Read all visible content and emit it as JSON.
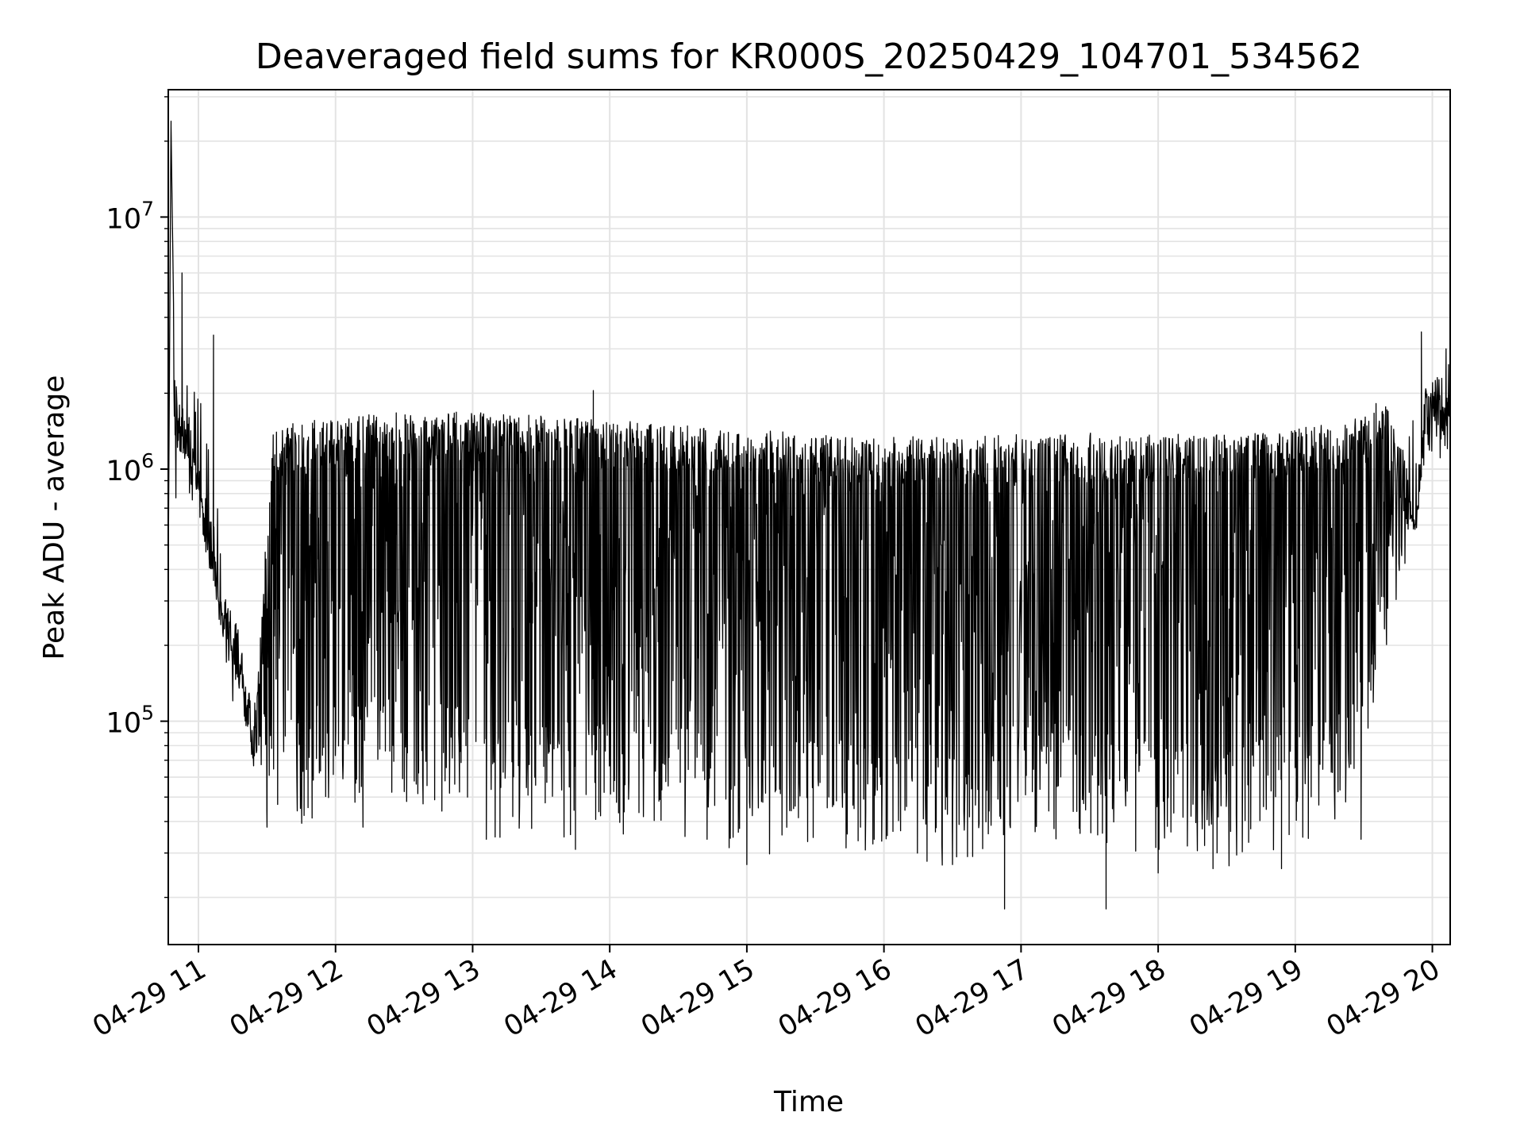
{
  "chart_data": {
    "type": "line",
    "title": "Deaveraged field sums for KR000S_20250429_104701_534562",
    "xlabel": "Time",
    "ylabel": "Peak ADU - average",
    "yscale": "log",
    "grid": true,
    "line_color": "#000000",
    "x_ticks": [
      "04-29 11",
      "04-29 12",
      "04-29 13",
      "04-29 14",
      "04-29 15",
      "04-29 16",
      "04-29 17",
      "04-29 18",
      "04-29 19",
      "04-29 20"
    ],
    "x_tick_hours": [
      11,
      12,
      13,
      14,
      15,
      16,
      17,
      18,
      19,
      20
    ],
    "xlim_hours": [
      10.78,
      20.13
    ],
    "y_ticks": [
      {
        "base": "10",
        "exp": "5",
        "value": 100000
      },
      {
        "base": "10",
        "exp": "6",
        "value": 1000000
      },
      {
        "base": "10",
        "exp": "7",
        "value": 10000000
      }
    ],
    "ylim": [
      13000,
      32000000
    ],
    "series": [
      {
        "anchors": [
          [
            10.78,
            400000
          ],
          [
            10.8,
            24000000
          ],
          [
            10.83,
            1500000
          ],
          [
            10.87,
            1400000
          ],
          [
            10.95,
            1200000
          ],
          [
            11.05,
            600000
          ],
          [
            11.15,
            300000
          ],
          [
            11.3,
            180000
          ],
          [
            11.4,
            80000
          ],
          [
            11.55,
            1200000
          ],
          [
            12.0,
            1300000
          ],
          [
            12.5,
            1350000
          ],
          [
            13.0,
            1350000
          ],
          [
            13.5,
            1300000
          ],
          [
            14.0,
            1250000
          ],
          [
            14.5,
            1200000
          ],
          [
            15.0,
            1150000
          ],
          [
            15.5,
            1100000
          ],
          [
            16.0,
            1080000
          ],
          [
            16.5,
            1070000
          ],
          [
            17.0,
            1100000
          ],
          [
            17.5,
            1120000
          ],
          [
            18.0,
            1100000
          ],
          [
            18.5,
            1100000
          ],
          [
            19.0,
            1150000
          ],
          [
            19.5,
            1300000
          ],
          [
            19.65,
            1600000
          ],
          [
            19.8,
            900000
          ],
          [
            19.88,
            550000
          ],
          [
            19.95,
            1700000
          ],
          [
            20.13,
            2000000
          ]
        ],
        "spikes": [
          [
            10.8,
            24000000
          ],
          [
            10.88,
            6000000
          ],
          [
            11.11,
            3400000
          ],
          [
            13.88,
            2050000
          ],
          [
            19.92,
            3500000
          ],
          [
            20.1,
            3000000
          ],
          [
            16.88,
            18000
          ],
          [
            17.62,
            18000
          ],
          [
            15.0,
            27000
          ],
          [
            16.5,
            27000
          ],
          [
            18.0,
            25000
          ],
          [
            18.4,
            26000
          ],
          [
            18.9,
            26000
          ],
          [
            11.5,
            38000
          ],
          [
            12.2,
            38000
          ],
          [
            13.1,
            34000
          ],
          [
            13.75,
            31000
          ],
          [
            19.48,
            34000
          ]
        ],
        "dip_envelope": [
          [
            11.0,
            900000
          ],
          [
            11.2,
            200000
          ],
          [
            11.4,
            60000
          ],
          [
            11.6,
            45000
          ],
          [
            12.0,
            55000
          ],
          [
            12.5,
            60000
          ],
          [
            13.0,
            45000
          ],
          [
            13.5,
            40000
          ],
          [
            14.0,
            45000
          ],
          [
            14.5,
            40000
          ],
          [
            15.0,
            35000
          ],
          [
            15.5,
            38000
          ],
          [
            16.0,
            38000
          ],
          [
            16.5,
            32000
          ],
          [
            17.0,
            45000
          ],
          [
            17.5,
            40000
          ],
          [
            18.0,
            35000
          ],
          [
            18.5,
            33000
          ],
          [
            19.0,
            38000
          ],
          [
            19.5,
            55000
          ],
          [
            19.7,
            300000
          ],
          [
            19.9,
            800000
          ],
          [
            20.13,
            1300000
          ]
        ]
      }
    ]
  }
}
